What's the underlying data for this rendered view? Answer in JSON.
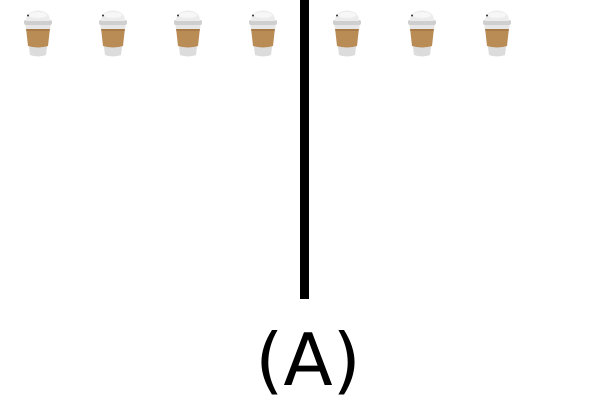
{
  "label": "(A)",
  "groups": [
    {
      "name": "left-group",
      "count": 4,
      "item": "coffee-cup-icon"
    },
    {
      "name": "right-group",
      "count": 3,
      "item": "coffee-cup-icon"
    }
  ],
  "colors": {
    "background": "#ffffff",
    "divider": "#000000",
    "lid": "#ececec",
    "lid_shade": "#cfcfcf",
    "sleeve": "#b98b55",
    "cup_body": "#dcdcdc"
  }
}
